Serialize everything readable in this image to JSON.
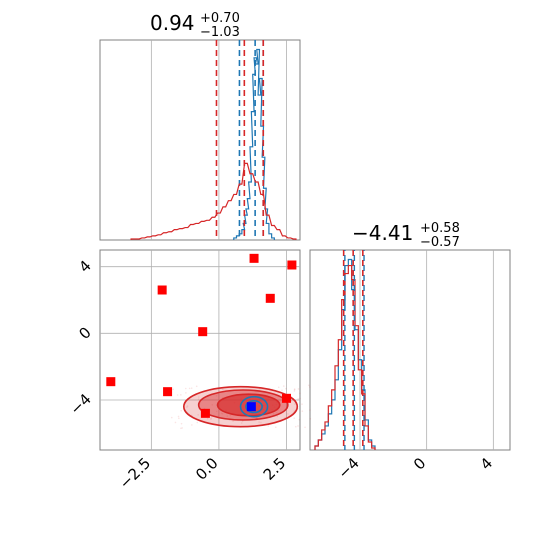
{
  "chart_data": [
    {
      "type": "histogram",
      "panel": "top-left",
      "title": {
        "value": "0.94",
        "plus": "+0.70",
        "minus": "−1.03"
      },
      "xlim": [
        -4.4,
        3.0
      ],
      "grid": true,
      "colors": {
        "primary": "#1f77b4",
        "secondary": "#d62728"
      },
      "series": [
        {
          "color": "#1f77b4",
          "bins": [
            {
              "x": 0.6,
              "y": 0.01
            },
            {
              "x": 0.7,
              "y": 0.02
            },
            {
              "x": 0.8,
              "y": 0.03
            },
            {
              "x": 0.9,
              "y": 0.05
            },
            {
              "x": 0.95,
              "y": 0.08
            },
            {
              "x": 1.0,
              "y": 0.12
            },
            {
              "x": 1.05,
              "y": 0.15
            },
            {
              "x": 1.1,
              "y": 0.2
            },
            {
              "x": 1.15,
              "y": 0.28
            },
            {
              "x": 1.2,
              "y": 0.45
            },
            {
              "x": 1.25,
              "y": 0.62
            },
            {
              "x": 1.3,
              "y": 0.8
            },
            {
              "x": 1.35,
              "y": 0.88
            },
            {
              "x": 1.4,
              "y": 0.85
            },
            {
              "x": 1.45,
              "y": 0.92
            },
            {
              "x": 1.5,
              "y": 0.7
            },
            {
              "x": 1.55,
              "y": 0.78
            },
            {
              "x": 1.6,
              "y": 0.55
            },
            {
              "x": 1.65,
              "y": 0.4
            },
            {
              "x": 1.7,
              "y": 0.25
            },
            {
              "x": 1.75,
              "y": 0.15
            },
            {
              "x": 1.8,
              "y": 0.08
            },
            {
              "x": 1.9,
              "y": 0.03
            },
            {
              "x": 2.0,
              "y": 0.01
            }
          ],
          "lines": [
            0.94,
            1.64,
            -0.09
          ],
          "quantile_lines": [
            0.76,
            1.34,
            1.64
          ]
        },
        {
          "color": "#d62728",
          "bins": [
            {
              "x": -3.2,
              "y": 0.005
            },
            {
              "x": -3.0,
              "y": 0.005
            },
            {
              "x": -2.8,
              "y": 0.01
            },
            {
              "x": -2.6,
              "y": 0.015
            },
            {
              "x": -2.4,
              "y": 0.02
            },
            {
              "x": -2.2,
              "y": 0.025
            },
            {
              "x": -2.0,
              "y": 0.035
            },
            {
              "x": -1.8,
              "y": 0.04
            },
            {
              "x": -1.6,
              "y": 0.05
            },
            {
              "x": -1.4,
              "y": 0.055
            },
            {
              "x": -1.2,
              "y": 0.06
            },
            {
              "x": -1.0,
              "y": 0.075
            },
            {
              "x": -0.8,
              "y": 0.08
            },
            {
              "x": -0.6,
              "y": 0.09
            },
            {
              "x": -0.4,
              "y": 0.095
            },
            {
              "x": -0.2,
              "y": 0.11
            },
            {
              "x": 0.0,
              "y": 0.13
            },
            {
              "x": 0.2,
              "y": 0.16
            },
            {
              "x": 0.4,
              "y": 0.19
            },
            {
              "x": 0.6,
              "y": 0.22
            },
            {
              "x": 0.8,
              "y": 0.27
            },
            {
              "x": 1.0,
              "y": 0.37
            },
            {
              "x": 1.2,
              "y": 0.32
            },
            {
              "x": 1.4,
              "y": 0.28
            },
            {
              "x": 1.6,
              "y": 0.22
            },
            {
              "x": 1.8,
              "y": 0.12
            },
            {
              "x": 2.0,
              "y": 0.07
            },
            {
              "x": 2.2,
              "y": 0.05
            },
            {
              "x": 2.4,
              "y": 0.02
            },
            {
              "x": 2.6,
              "y": 0.01
            },
            {
              "x": 2.8,
              "y": 0.005
            }
          ],
          "quantile_lines": [
            -0.09,
            0.94,
            1.64
          ]
        }
      ]
    },
    {
      "type": "scatter",
      "panel": "bottom-left",
      "xlim": [
        -4.4,
        3.0
      ],
      "ylim": [
        -7.0,
        5.0
      ],
      "xticks": [
        "−2.5",
        "0.0",
        "2.5"
      ],
      "yticks": [
        "4",
        "0",
        "−4"
      ],
      "grid": true,
      "series": [
        {
          "marker": "square",
          "color": "#ff0000",
          "points": [
            {
              "x": 1.3,
              "y": 4.5
            },
            {
              "x": 2.7,
              "y": 4.1
            },
            {
              "x": -2.1,
              "y": 2.6
            },
            {
              "x": 1.9,
              "y": 2.1
            },
            {
              "x": -0.6,
              "y": 0.1
            },
            {
              "x": -4.0,
              "y": -2.9
            },
            {
              "x": -1.9,
              "y": -3.5
            },
            {
              "x": 2.5,
              "y": -3.9
            },
            {
              "x": -0.5,
              "y": -4.8
            }
          ]
        },
        {
          "marker": "square",
          "color": "#0000ff",
          "points": [
            {
              "x": 1.2,
              "y": -4.4
            }
          ]
        }
      ],
      "contours": [
        {
          "color": "#d62728",
          "levels": [
            {
              "cx": 0.8,
              "cy": -4.4,
              "rx": 2.1,
              "ry": 1.2
            },
            {
              "cx": 0.9,
              "cy": -4.3,
              "rx": 1.65,
              "ry": 0.9
            },
            {
              "cx": 1.1,
              "cy": -4.3,
              "rx": 1.15,
              "ry": 0.65
            }
          ]
        },
        {
          "color": "#1f77b4",
          "levels": [
            {
              "cx": 1.3,
              "cy": -4.4,
              "rx": 0.5,
              "ry": 0.6
            },
            {
              "cx": 1.3,
              "cy": -4.4,
              "rx": 0.3,
              "ry": 0.35
            }
          ]
        }
      ]
    },
    {
      "type": "histogram",
      "panel": "bottom-right",
      "title": {
        "value": "−4.41",
        "plus": "+0.58",
        "minus": "−0.57"
      },
      "xlim": [
        -7.0,
        5.0
      ],
      "xticks": [
        "−4",
        "0",
        "4"
      ],
      "grid": true,
      "series": [
        {
          "color": "#1f77b4",
          "bins": [
            {
              "x": -6.6,
              "y": 0.02
            },
            {
              "x": -6.4,
              "y": 0.05
            },
            {
              "x": -6.2,
              "y": 0.08
            },
            {
              "x": -6.0,
              "y": 0.12
            },
            {
              "x": -5.8,
              "y": 0.18
            },
            {
              "x": -5.6,
              "y": 0.25
            },
            {
              "x": -5.4,
              "y": 0.35
            },
            {
              "x": -5.2,
              "y": 0.5
            },
            {
              "x": -5.0,
              "y": 0.7
            },
            {
              "x": -4.8,
              "y": 0.92
            },
            {
              "x": -4.6,
              "y": 0.95
            },
            {
              "x": -4.4,
              "y": 0.8
            },
            {
              "x": -4.2,
              "y": 0.6
            },
            {
              "x": -4.0,
              "y": 0.45
            },
            {
              "x": -3.8,
              "y": 0.3
            },
            {
              "x": -3.6,
              "y": 0.15
            },
            {
              "x": -3.4,
              "y": 0.05
            },
            {
              "x": -3.2,
              "y": 0.02
            }
          ],
          "quantile_lines": [
            -4.98,
            -4.41,
            -3.83
          ]
        },
        {
          "color": "#d62728",
          "bins": [
            {
              "x": -6.6,
              "y": 0.02
            },
            {
              "x": -6.4,
              "y": 0.05
            },
            {
              "x": -6.2,
              "y": 0.1
            },
            {
              "x": -6.0,
              "y": 0.14
            },
            {
              "x": -5.8,
              "y": 0.22
            },
            {
              "x": -5.6,
              "y": 0.3
            },
            {
              "x": -5.4,
              "y": 0.42
            },
            {
              "x": -5.2,
              "y": 0.55
            },
            {
              "x": -5.0,
              "y": 0.75
            },
            {
              "x": -4.8,
              "y": 0.88
            },
            {
              "x": -4.6,
              "y": 0.92
            },
            {
              "x": -4.4,
              "y": 0.85
            },
            {
              "x": -4.2,
              "y": 0.62
            },
            {
              "x": -4.0,
              "y": 0.4
            },
            {
              "x": -3.8,
              "y": 0.28
            },
            {
              "x": -3.6,
              "y": 0.12
            },
            {
              "x": -3.4,
              "y": 0.04
            },
            {
              "x": -3.2,
              "y": 0.01
            }
          ],
          "quantile_lines": [
            -4.98,
            -4.41,
            -3.83
          ]
        }
      ]
    }
  ]
}
